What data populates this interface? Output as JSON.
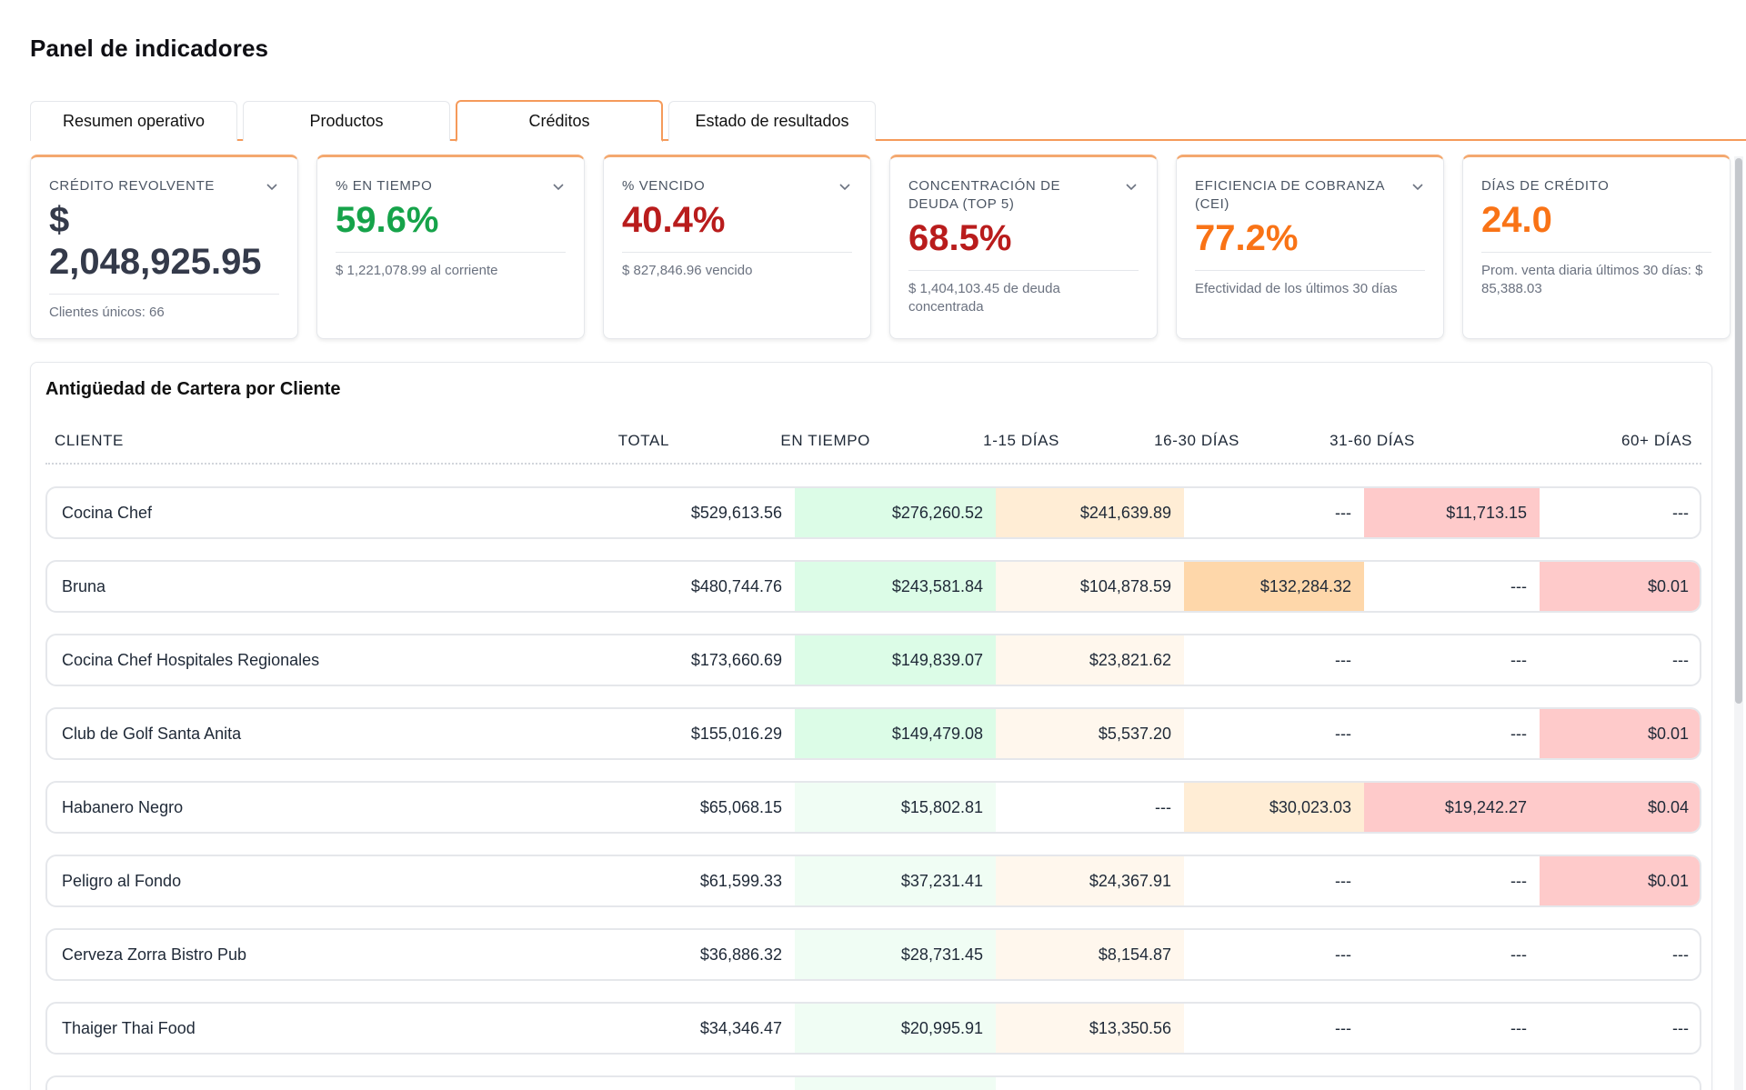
{
  "page": {
    "title": "Panel de indicadores"
  },
  "tabs": [
    {
      "label": "Resumen operativo",
      "active": false
    },
    {
      "label": "Productos",
      "active": false
    },
    {
      "label": "Créditos",
      "active": true
    },
    {
      "label": "Estado de resultados",
      "active": false
    }
  ],
  "kpis": [
    {
      "label": "CRÉDITO REVOLVENTE",
      "value": "$ 2,048,925.95",
      "sub": "Clientes únicos: 66",
      "color": "#343a4a"
    },
    {
      "label": "% EN TIEMPO",
      "value": "59.6%",
      "sub": "$ 1,221,078.99 al corriente",
      "color": "#16a34a"
    },
    {
      "label": "% VENCIDO",
      "value": "40.4%",
      "sub": "$ 827,846.96 vencido",
      "color": "#b91c1c"
    },
    {
      "label": "CONCENTRACIÓN DE DEUDA (TOP 5)",
      "value": "68.5%",
      "sub": "$ 1,404,103.45 de deuda concentrada",
      "color": "#b91c1c"
    },
    {
      "label": "EFICIENCIA DE COBRANZA (CEI)",
      "value": "77.2%",
      "sub": "Efectividad de los últimos 30 días",
      "color": "#f97316"
    },
    {
      "label": "DÍAS DE CRÉDITO",
      "value": "24.0",
      "sub": "Prom. venta diaria últimos 30 días: $ 85,388.03",
      "color": "#f97316"
    }
  ],
  "aging": {
    "title": "Antigüedad de Cartera por Cliente",
    "columns": [
      "CLIENTE",
      "TOTAL",
      "EN TIEMPO",
      "1-15 DÍAS",
      "16-30 DÍAS",
      "31-60 DÍAS",
      "60+ DÍAS"
    ],
    "heat_colors": {
      "green_strong": "#dcfce7",
      "green_light": "#f0fdf4",
      "amber_strong": "#ffedd5",
      "amber_light": "#fff7ed",
      "orange_strong": "#fed7aa",
      "red_strong": "#fecaca",
      "red_light": "#fee2e2"
    },
    "rows": [
      {
        "client": "Cocina Chef",
        "total": "$529,613.56",
        "en_tiempo": "$276,260.52",
        "d1_15": "$241,639.89",
        "d16_30": "---",
        "d31_60": "$11,713.15",
        "d60": "---"
      },
      {
        "client": "Bruna",
        "total": "$480,744.76",
        "en_tiempo": "$243,581.84",
        "d1_15": "$104,878.59",
        "d16_30": "$132,284.32",
        "d31_60": "---",
        "d60": "$0.01"
      },
      {
        "client": "Cocina Chef Hospitales Regionales",
        "total": "$173,660.69",
        "en_tiempo": "$149,839.07",
        "d1_15": "$23,821.62",
        "d16_30": "---",
        "d31_60": "---",
        "d60": "---"
      },
      {
        "client": "Club de Golf Santa Anita",
        "total": "$155,016.29",
        "en_tiempo": "$149,479.08",
        "d1_15": "$5,537.20",
        "d16_30": "---",
        "d31_60": "---",
        "d60": "$0.01"
      },
      {
        "client": "Habanero Negro",
        "total": "$65,068.15",
        "en_tiempo": "$15,802.81",
        "d1_15": "---",
        "d16_30": "$30,023.03",
        "d31_60": "$19,242.27",
        "d60": "$0.04"
      },
      {
        "client": "Peligro al Fondo",
        "total": "$61,599.33",
        "en_tiempo": "$37,231.41",
        "d1_15": "$24,367.91",
        "d16_30": "---",
        "d31_60": "---",
        "d60": "$0.01"
      },
      {
        "client": "Cerveza Zorra Bistro Pub",
        "total": "$36,886.32",
        "en_tiempo": "$28,731.45",
        "d1_15": "$8,154.87",
        "d16_30": "---",
        "d31_60": "---",
        "d60": "---"
      },
      {
        "client": "Thaiger Thai Food",
        "total": "$34,346.47",
        "en_tiempo": "$20,995.91",
        "d1_15": "$13,350.56",
        "d16_30": "---",
        "d31_60": "---",
        "d60": "---"
      },
      {
        "client": "",
        "total": "",
        "en_tiempo": "",
        "d1_15": "",
        "d16_30": "",
        "d31_60": "",
        "d60": ""
      }
    ]
  }
}
